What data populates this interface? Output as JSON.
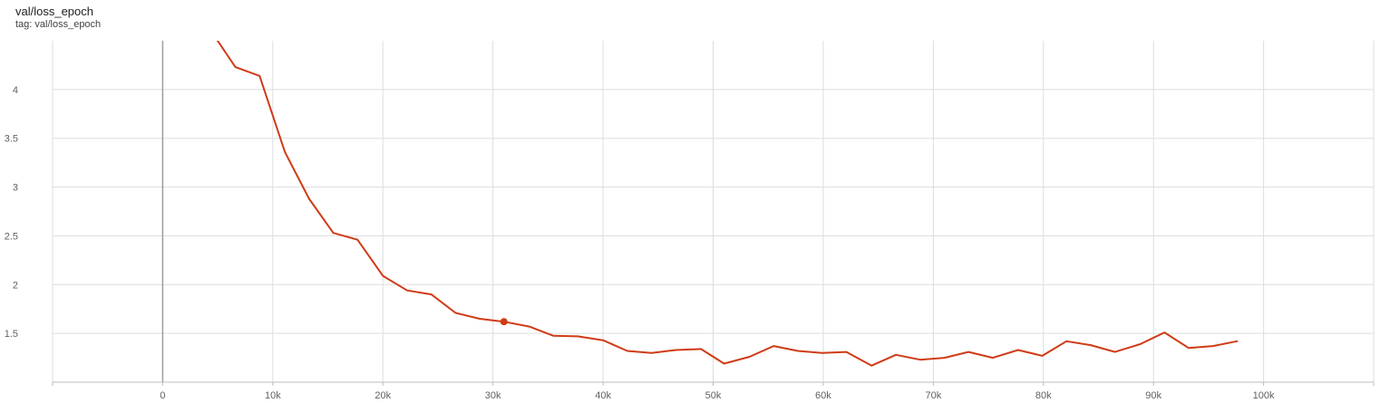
{
  "header": {
    "title": "val/loss_epoch",
    "tag": "tag: val/loss_epoch"
  },
  "colors": {
    "series": "#cf3b16",
    "grid": "#dddddd",
    "zero_axis": "#9e9e9e",
    "tick_text": "#616161"
  },
  "chart_data": {
    "type": "line",
    "title": "val/loss_epoch",
    "xlabel": "",
    "ylabel": "",
    "xlim": [
      -10000,
      110000
    ],
    "ylim": [
      1,
      4.5
    ],
    "x_ticks": [
      0,
      10000,
      20000,
      30000,
      40000,
      50000,
      60000,
      70000,
      80000,
      90000,
      100000
    ],
    "x_tick_labels": [
      "0",
      "10k",
      "20k",
      "30k",
      "40k",
      "50k",
      "60k",
      "70k",
      "80k",
      "90k",
      "100k"
    ],
    "y_ticks": [
      1.5,
      2,
      2.5,
      3,
      3.5,
      4
    ],
    "y_tick_labels": [
      "1.5",
      "2",
      "2.5",
      "3",
      "3.5",
      "4"
    ],
    "grid": true,
    "series": [
      {
        "name": "",
        "x": [
          4400,
          6600,
          8800,
          11100,
          13300,
          15500,
          17700,
          20000,
          22200,
          24400,
          26600,
          28800,
          31000,
          33300,
          35500,
          37700,
          40000,
          42200,
          44400,
          46600,
          48900,
          51000,
          53300,
          55500,
          57700,
          59900,
          62100,
          64400,
          66600,
          68800,
          71000,
          73200,
          75400,
          77700,
          79900,
          82100,
          84300,
          86500,
          88800,
          91000,
          93200,
          95400,
          97600
        ],
        "y": [
          4.6,
          4.23,
          4.14,
          3.36,
          2.88,
          2.53,
          2.46,
          2.09,
          1.94,
          1.9,
          1.71,
          1.65,
          1.62,
          1.57,
          1.475,
          1.47,
          1.43,
          1.32,
          1.3,
          1.33,
          1.34,
          1.19,
          1.26,
          1.37,
          1.32,
          1.3,
          1.31,
          1.17,
          1.28,
          1.23,
          1.25,
          1.31,
          1.25,
          1.33,
          1.27,
          1.42,
          1.38,
          1.31,
          1.39,
          1.51,
          1.35,
          1.37,
          1.42
        ]
      }
    ],
    "highlight_point": {
      "x": 31000,
      "y": 1.62
    }
  }
}
